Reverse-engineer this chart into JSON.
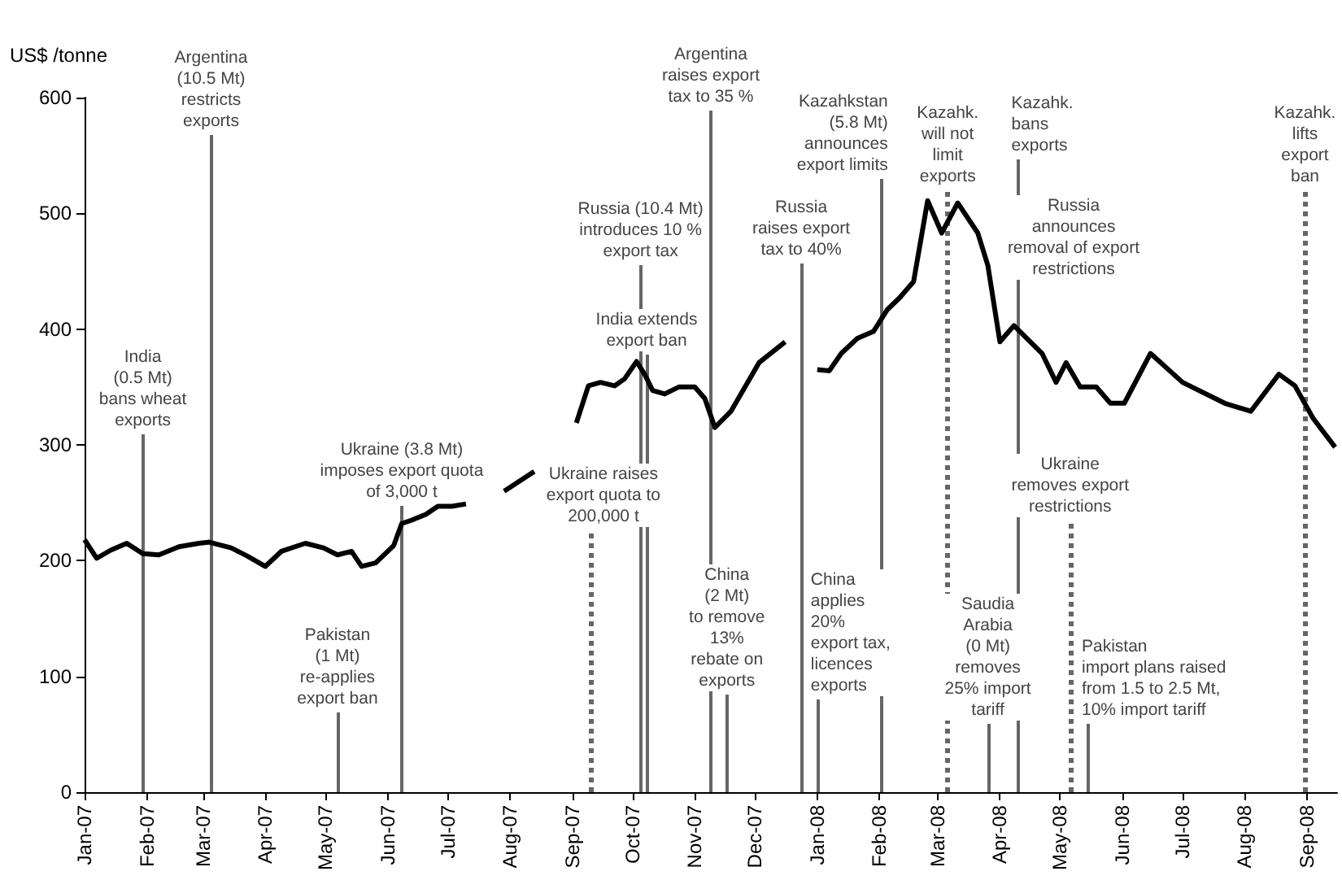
{
  "chart_data": {
    "type": "line",
    "ylabel": "US$ /tonne",
    "color": "#000000",
    "marker": "none",
    "xlim": [
      "2007-01-01",
      "2008-09-16"
    ],
    "ylim": [
      0,
      600
    ],
    "yticks": [
      0,
      100,
      200,
      300,
      400,
      500,
      600
    ],
    "xticks": [
      {
        "value": "2007-01-01",
        "label": "Jan-07"
      },
      {
        "value": "2007-02-01",
        "label": "Feb-07"
      },
      {
        "value": "2007-03-01",
        "label": "Mar-07"
      },
      {
        "value": "2007-04-01",
        "label": "Apr-07"
      },
      {
        "value": "2007-05-01",
        "label": "May-07"
      },
      {
        "value": "2007-06-01",
        "label": "Jun-07"
      },
      {
        "value": "2007-07-01",
        "label": "Jul-07"
      },
      {
        "value": "2007-08-01",
        "label": "Aug-07"
      },
      {
        "value": "2007-09-01",
        "label": "Sep-07"
      },
      {
        "value": "2007-10-01",
        "label": "Oct-07"
      },
      {
        "value": "2007-11-01",
        "label": "Nov-07"
      },
      {
        "value": "2007-12-01",
        "label": "Dec-07"
      },
      {
        "value": "2008-01-01",
        "label": "Jan-08"
      },
      {
        "value": "2008-02-01",
        "label": "Feb-08"
      },
      {
        "value": "2008-03-01",
        "label": "Mar-08"
      },
      {
        "value": "2008-04-01",
        "label": "Apr-08"
      },
      {
        "value": "2008-05-01",
        "label": "May-08"
      },
      {
        "value": "2008-06-01",
        "label": "Jun-08"
      },
      {
        "value": "2008-07-01",
        "label": "Jul-08"
      },
      {
        "value": "2008-08-01",
        "label": "Aug-08"
      },
      {
        "value": "2008-09-01",
        "label": "Sep-08"
      }
    ],
    "x": [
      "2007-01-01",
      "2007-01-07",
      "2007-01-14",
      "2007-01-22",
      "2007-01-30",
      "2007-02-07",
      "2007-02-17",
      "2007-02-27",
      "2007-03-04",
      "2007-03-15",
      "2007-03-23",
      "2007-04-01",
      "2007-04-09",
      "2007-04-21",
      "2007-04-30",
      "2007-05-07",
      "2007-05-14",
      "2007-05-19",
      "2007-05-26",
      "2007-06-04",
      "2007-06-08",
      "2007-06-13",
      "2007-06-20",
      "2007-06-26",
      "2007-07-03",
      "2007-07-10",
      "2007-07-20",
      "2007-07-29",
      "2007-08-13",
      "2007-08-25",
      "2007-09-03",
      "2007-09-09",
      "2007-09-15",
      "2007-09-22",
      "2007-09-27",
      "2007-10-03",
      "2007-10-07",
      "2007-10-11",
      "2007-10-17",
      "2007-10-24",
      "2007-11-01",
      "2007-11-06",
      "2007-11-11",
      "2007-11-19",
      "2007-12-03",
      "2007-12-16",
      "2007-12-23",
      "2008-01-01",
      "2008-01-07",
      "2008-01-13",
      "2008-01-21",
      "2008-01-29",
      "2008-02-05",
      "2008-02-11",
      "2008-02-18",
      "2008-02-25",
      "2008-03-03",
      "2008-03-11",
      "2008-03-21",
      "2008-03-26",
      "2008-04-01",
      "2008-04-08",
      "2008-04-22",
      "2008-04-29",
      "2008-05-04",
      "2008-05-11",
      "2008-05-19",
      "2008-05-26",
      "2008-06-02",
      "2008-06-15",
      "2008-07-01",
      "2008-07-22",
      "2008-08-04",
      "2008-08-18",
      "2008-08-26",
      "2008-09-04",
      "2008-09-15"
    ],
    "values": [
      218,
      202,
      209,
      215,
      206,
      205,
      212,
      215,
      216,
      211,
      204,
      195,
      208,
      215,
      211,
      205,
      208,
      195,
      198,
      213,
      232,
      235,
      240,
      247,
      247,
      249,
      null,
      260,
      277,
      null,
      319,
      351,
      354,
      351,
      357,
      372,
      361,
      347,
      344,
      350,
      350,
      340,
      315,
      329,
      371,
      389,
      null,
      365,
      364,
      379,
      392,
      398,
      417,
      427,
      441,
      511,
      483,
      509,
      483,
      455,
      389,
      403,
      379,
      354,
      371,
      350,
      350,
      336,
      336,
      379,
      354,
      336,
      329,
      361,
      351,
      323,
      298
    ],
    "ref_lines": [
      {
        "axis": "x",
        "value": "2007-01-30",
        "label": "India\n(0.5 Mt)\nbans wheat\nexports"
      },
      {
        "axis": "x",
        "value": "2007-03-05",
        "label": "Argentina\n(10.5 Mt)\nrestricts\nexports"
      },
      {
        "axis": "x",
        "value": "2007-05-07",
        "label": "Pakistan\n(1 Mt)\nre-applies\nexport ban"
      },
      {
        "axis": "x",
        "value": "2007-06-08",
        "label": "Ukraine (3.8 Mt)\nimposes export quota\nof 3,000 t"
      },
      {
        "axis": "x",
        "value": "2007-09-10",
        "label": "Ukraine raises\nexport quota to\n200,000 t",
        "line_style": "dotted"
      },
      {
        "axis": "x",
        "value": "2007-10-05",
        "label": "Russia (10.4 Mt)\nintroduces 10 %\nexport tax"
      },
      {
        "axis": "x",
        "value": "2007-10-08",
        "label": "India extends\nexport ban"
      },
      {
        "axis": "x",
        "value": "2007-11-09",
        "label": "Argentina\nraises export\ntax to 35 %"
      },
      {
        "axis": "x",
        "value": "2007-11-17",
        "label": "China\n(2 Mt)\nto remove\n13%\nrebate on\nexports"
      },
      {
        "axis": "x",
        "value": "2007-12-24",
        "label": "Russia\nraises export\ntax to 40%"
      },
      {
        "axis": "x",
        "value": "2008-01-01",
        "label": "China\napplies\n20%\nexport tax,\nlicences\nexports"
      },
      {
        "axis": "x",
        "value": "2008-02-02",
        "label": "Kazahkstan\n(5.8 Mt)\nannounces\nexport limits"
      },
      {
        "axis": "x",
        "value": "2008-03-06",
        "label": "Kazahk.\nwill not\nlimit\nexports",
        "line_style": "dotted"
      },
      {
        "axis": "x",
        "value": "2008-03-26",
        "label": "Saudia\nArabia\n(0 Mt)\nremoves\n25% import\ntariff"
      },
      {
        "axis": "x",
        "value": "2008-04-10",
        "label": "Kazahk.\nbans\nexports"
      },
      {
        "axis": "x",
        "value": "2008-05-06",
        "label": "Ukraine\nremoves export\nrestrictions",
        "line_style": "dotted"
      },
      {
        "axis": "x",
        "value": "2008-05-15",
        "label": "Pakistan\nimport plans raised\nfrom 1.5 to 2.5 Mt,\n10% import tariff"
      },
      {
        "axis": "x",
        "value": "2008-08-31",
        "label": "Kazahk.\nlifts\nexport\nban",
        "line_style": "dotted"
      }
    ],
    "annotations": [
      "Russia\nannounces\nremoval of export\nrestrictions"
    ]
  }
}
